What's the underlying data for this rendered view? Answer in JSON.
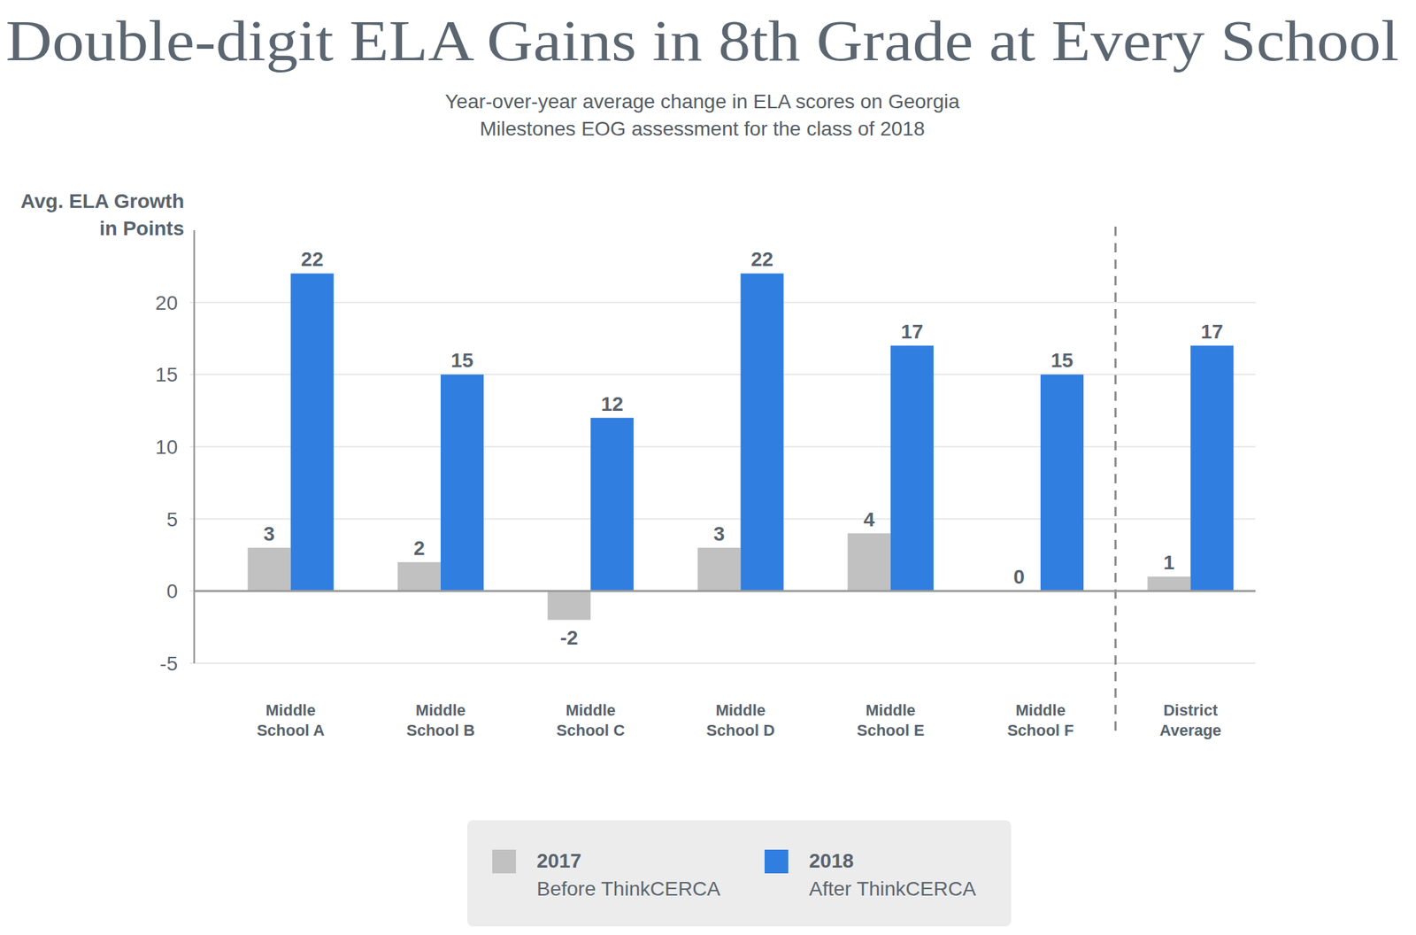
{
  "chart_data": {
    "type": "bar",
    "title": "Double-digit ELA Gains in 8th Grade at Every School",
    "subtitle": [
      "Year-over-year average change in ELA scores on Georgia",
      "Milestones EOG assessment for the class of 2018"
    ],
    "y_label": [
      "Avg. ELA Growth",
      "in Points"
    ],
    "categories": [
      "Middle School A",
      "Middle School B",
      "Middle School C",
      "Middle School D",
      "Middle School E",
      "Middle School F",
      "District Average"
    ],
    "series": [
      {
        "name": "2017",
        "description": "Before ThinkCERCA",
        "color": "#c1c1c1",
        "values": [
          3,
          2,
          -2,
          3,
          4,
          0,
          1
        ]
      },
      {
        "name": "2018",
        "description": "After ThinkCERCA",
        "color": "#2f7ee0",
        "values": [
          22,
          15,
          12,
          22,
          17,
          15,
          17
        ]
      }
    ],
    "ylim": [
      -5,
      25
    ],
    "yticks": [
      -5,
      0,
      5,
      10,
      15,
      20
    ],
    "grid": true,
    "data_labels": true,
    "legend": "bottom"
  }
}
